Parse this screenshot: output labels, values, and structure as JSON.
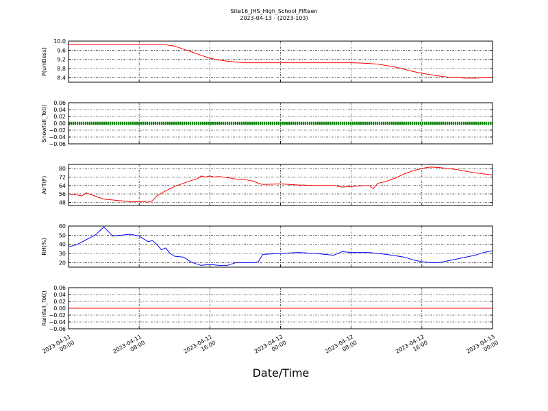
{
  "title": {
    "line1": "Site16_JHS_High_School_Fifteen",
    "line2": "2023-04-13 - (2023-103)"
  },
  "xlabel": "Date/Time",
  "x_ticks": [
    {
      "t": 0,
      "line1": "2023-04-11",
      "line2": "00:00"
    },
    {
      "t": 8,
      "line1": "2023-04-11",
      "line2": "08:00"
    },
    {
      "t": 16,
      "line1": "2023-04-11",
      "line2": "16:00"
    },
    {
      "t": 24,
      "line1": "2023-04-12",
      "line2": "00:00"
    },
    {
      "t": 32,
      "line1": "2023-04-12",
      "line2": "08:00"
    },
    {
      "t": 40,
      "line1": "2023-04-12",
      "line2": "16:00"
    },
    {
      "t": 48,
      "line1": "2023-04-13",
      "line2": "00:00"
    }
  ],
  "colors": {
    "red": "#ff0000",
    "green": "#008000",
    "blue": "#0000ff"
  },
  "chart_data": [
    {
      "type": "line",
      "ylabel": "P(unitless)",
      "xlim": [
        "2023-04-11 00:00",
        "2023-04-13 00:00"
      ],
      "ylim": [
        8.2,
        10.0
      ],
      "yticks": [
        "8.4",
        "8.8",
        "9.2",
        "9.6",
        "10.0"
      ],
      "grid": true,
      "series": [
        {
          "color": "#ff0000",
          "x": [
            "2023-04-11 00:00",
            "2023-04-11 08:00",
            "2023-04-11 10:00",
            "2023-04-11 11:00",
            "2023-04-11 12:00",
            "2023-04-11 13:00",
            "2023-04-11 14:00",
            "2023-04-11 15:00",
            "2023-04-11 16:00",
            "2023-04-11 17:00",
            "2023-04-11 18:00",
            "2023-04-11 19:00",
            "2023-04-11 20:00",
            "2023-04-11 21:00",
            "2023-04-12 08:00",
            "2023-04-12 09:00",
            "2023-04-12 10:00",
            "2023-04-12 11:00",
            "2023-04-12 12:00",
            "2023-04-12 13:00",
            "2023-04-12 14:00",
            "2023-04-12 15:00",
            "2023-04-12 16:00",
            "2023-04-12 17:00",
            "2023-04-12 18:00",
            "2023-04-12 19:00",
            "2023-04-12 20:00",
            "2023-04-12 21:00",
            "2023-04-12 22:00",
            "2023-04-12 23:00",
            "2023-04-13 00:00"
          ],
          "y": [
            9.86,
            9.86,
            9.86,
            9.84,
            9.78,
            9.65,
            9.52,
            9.38,
            9.25,
            9.17,
            9.12,
            9.08,
            9.05,
            9.05,
            9.05,
            9.04,
            9.02,
            8.99,
            8.93,
            8.86,
            8.77,
            8.67,
            8.59,
            8.53,
            8.47,
            8.42,
            8.4,
            8.38,
            8.38,
            8.4,
            8.4
          ]
        }
      ]
    },
    {
      "type": "line",
      "ylabel": "Snowfall_Tot()",
      "xlim": [
        "2023-04-11 00:00",
        "2023-04-13 00:00"
      ],
      "ylim": [
        -0.06,
        0.06
      ],
      "yticks": [
        "−0.06",
        "−0.04",
        "−0.02",
        "0.00",
        "0.02",
        "0.04",
        "0.06"
      ],
      "grid": true,
      "series": [
        {
          "color": "#008000",
          "marker": "point",
          "x": [
            "2023-04-11 00:00",
            "2023-04-13 00:00"
          ],
          "y": [
            0.0,
            0.0
          ]
        }
      ]
    },
    {
      "type": "line",
      "ylabel": "AirT(F)",
      "xlim": [
        "2023-04-11 00:00",
        "2023-04-13 00:00"
      ],
      "ylim": [
        45,
        84
      ],
      "yticks": [
        "48",
        "56",
        "64",
        "72",
        "80"
      ],
      "grid": true,
      "series": [
        {
          "color": "#ff0000",
          "x": [
            "2023-04-11 00:00",
            "2023-04-11 01:00",
            "2023-04-11 01:30",
            "2023-04-11 02:00",
            "2023-04-11 04:00",
            "2023-04-11 06:00",
            "2023-04-11 07:00",
            "2023-04-11 08:00",
            "2023-04-11 08:30",
            "2023-04-11 09:00",
            "2023-04-11 09:30",
            "2023-04-11 10:00",
            "2023-04-11 11:00",
            "2023-04-11 12:00",
            "2023-04-11 13:00",
            "2023-04-11 14:00",
            "2023-04-11 14:30",
            "2023-04-11 15:00",
            "2023-04-11 15:30",
            "2023-04-11 16:00",
            "2023-04-11 16:30",
            "2023-04-11 17:00",
            "2023-04-11 18:00",
            "2023-04-11 19:00",
            "2023-04-11 20:00",
            "2023-04-11 21:00",
            "2023-04-11 21:30",
            "2023-04-11 22:00",
            "2023-04-12 00:00",
            "2023-04-12 02:00",
            "2023-04-12 04:00",
            "2023-04-12 06:00",
            "2023-04-12 07:00",
            "2023-04-12 08:00",
            "2023-04-12 09:00",
            "2023-04-12 10:00",
            "2023-04-12 10:30",
            "2023-04-12 11:00",
            "2023-04-12 12:00",
            "2023-04-12 13:00",
            "2023-04-12 14:00",
            "2023-04-12 15:00",
            "2023-04-12 16:00",
            "2023-04-12 16:30",
            "2023-04-12 17:00",
            "2023-04-12 18:00",
            "2023-04-12 19:00",
            "2023-04-12 20:00",
            "2023-04-12 21:00",
            "2023-04-12 22:00",
            "2023-04-12 23:00",
            "2023-04-13 00:00"
          ],
          "y": [
            56,
            55,
            54,
            57,
            51,
            49.5,
            48.5,
            48.5,
            49,
            48,
            49.5,
            54,
            59,
            63,
            66,
            69,
            70,
            73,
            72,
            73,
            72,
            72.5,
            71.5,
            70,
            69.5,
            68,
            66,
            65,
            65.5,
            64.5,
            64,
            64,
            62.5,
            63,
            63.5,
            64,
            61,
            66,
            68,
            71,
            75,
            78,
            80,
            81,
            81.5,
            81,
            80,
            79,
            77.5,
            76,
            75,
            74
          ]
        }
      ]
    },
    {
      "type": "line",
      "ylabel": "RH(%)",
      "xlim": [
        "2023-04-11 00:00",
        "2023-04-13 00:00"
      ],
      "ylim": [
        15,
        60
      ],
      "yticks": [
        "20",
        "30",
        "40",
        "50",
        "60"
      ],
      "grid": true,
      "series": [
        {
          "color": "#0000ff",
          "x": [
            "2023-04-11 00:00",
            "2023-04-11 01:00",
            "2023-04-11 02:00",
            "2023-04-11 03:00",
            "2023-04-11 04:00",
            "2023-04-11 05:00",
            "2023-04-11 06:00",
            "2023-04-11 07:00",
            "2023-04-11 08:00",
            "2023-04-11 08:30",
            "2023-04-11 09:00",
            "2023-04-11 09:30",
            "2023-04-11 10:00",
            "2023-04-11 10:30",
            "2023-04-11 11:00",
            "2023-04-11 11:30",
            "2023-04-11 12:00",
            "2023-04-11 13:00",
            "2023-04-11 14:00",
            "2023-04-11 15:00",
            "2023-04-11 16:00",
            "2023-04-11 17:00",
            "2023-04-11 18:00",
            "2023-04-11 19:00",
            "2023-04-11 20:00",
            "2023-04-11 21:00",
            "2023-04-11 21:30",
            "2023-04-11 22:00",
            "2023-04-12 00:00",
            "2023-04-12 02:00",
            "2023-04-12 04:00",
            "2023-04-12 06:00",
            "2023-04-12 07:00",
            "2023-04-12 08:00",
            "2023-04-12 10:00",
            "2023-04-12 12:00",
            "2023-04-12 14:00",
            "2023-04-12 15:00",
            "2023-04-12 16:00",
            "2023-04-12 17:00",
            "2023-04-12 18:00",
            "2023-04-12 19:00",
            "2023-04-12 20:00",
            "2023-04-12 21:00",
            "2023-04-12 22:00",
            "2023-04-12 23:00",
            "2023-04-13 00:00"
          ],
          "y": [
            37,
            40,
            45,
            50,
            59,
            49,
            50,
            51,
            49,
            46,
            43,
            44,
            40,
            34,
            36,
            30,
            27,
            26,
            20,
            17,
            18,
            17,
            17,
            20,
            20,
            20,
            21,
            29,
            30,
            31,
            30,
            28,
            32,
            31,
            31,
            29,
            26,
            23,
            21,
            20,
            20,
            22,
            24,
            26,
            28,
            31,
            33
          ]
        }
      ]
    },
    {
      "type": "line",
      "ylabel": "Rainfall_Tot()",
      "xlim": [
        "2023-04-11 00:00",
        "2023-04-13 00:00"
      ],
      "ylim": [
        -0.06,
        0.06
      ],
      "yticks": [
        "−0.06",
        "−0.04",
        "−0.02",
        "0.00",
        "0.02",
        "0.04",
        "0.06"
      ],
      "grid": true,
      "series": [
        {
          "color": "#ff0000",
          "x": [
            "2023-04-11 00:00",
            "2023-04-13 00:00"
          ],
          "y": [
            0.0,
            0.0
          ]
        }
      ]
    }
  ]
}
